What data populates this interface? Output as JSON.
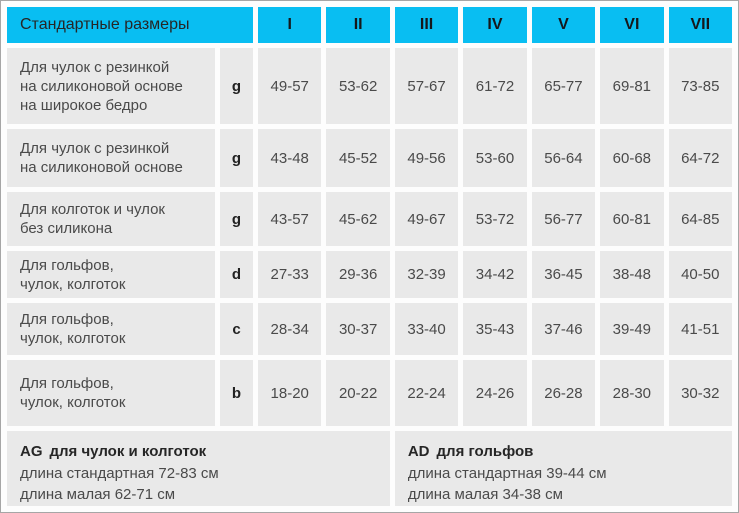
{
  "chart_data": {
    "type": "table",
    "header": {
      "title": "Стандартные размеры",
      "size_columns": [
        "I",
        "II",
        "III",
        "IV",
        "V",
        "VI",
        "VII"
      ]
    },
    "rows": [
      {
        "label": "Для чулок с резинкой\nна силиконовой основе\nна широкое бедро",
        "measure": "g",
        "values": [
          "49-57",
          "53-62",
          "57-67",
          "61-72",
          "65-77",
          "69-81",
          "73-85"
        ]
      },
      {
        "label": "Для чулок с резинкой\nна силиконовой основе",
        "measure": "g",
        "values": [
          "43-48",
          "45-52",
          "49-56",
          "53-60",
          "56-64",
          "60-68",
          "64-72"
        ]
      },
      {
        "label": "Для колготок и чулок\nбез силикона",
        "measure": "g",
        "values": [
          "43-57",
          "45-62",
          "49-67",
          "53-72",
          "56-77",
          "60-81",
          "64-85"
        ]
      },
      {
        "label": "Для гольфов,\nчулок, колготок",
        "measure": "d",
        "values": [
          "27-33",
          "29-36",
          "32-39",
          "34-42",
          "36-45",
          "38-48",
          "40-50"
        ]
      },
      {
        "label": "Для гольфов,\nчулок, колготок",
        "measure": "c",
        "values": [
          "28-34",
          "30-37",
          "33-40",
          "35-43",
          "37-46",
          "39-49",
          "41-51"
        ]
      },
      {
        "label": "Для гольфов,\nчулок, колготок",
        "measure": "b",
        "values": [
          "18-20",
          "20-22",
          "22-24",
          "24-26",
          "26-28",
          "28-30",
          "30-32"
        ]
      }
    ],
    "notes": {
      "left": {
        "code": "AG",
        "name": "для чулок и колготок",
        "standard_length": "длина стандартная 72-83 см",
        "short_length": "длина малая 62-71 см"
      },
      "right": {
        "code": "AD",
        "name": "для гольфов",
        "standard_length": "длина стандартная 39-44 см",
        "short_length": "длина малая 34-38 см"
      }
    },
    "layout": {
      "header_bg": "#09bef2",
      "cell_bg": "#e9e9e9",
      "gap_color": "#fdfdfd",
      "header_text_color": "#15181b",
      "body_text_color": "#4a4a4a"
    }
  }
}
